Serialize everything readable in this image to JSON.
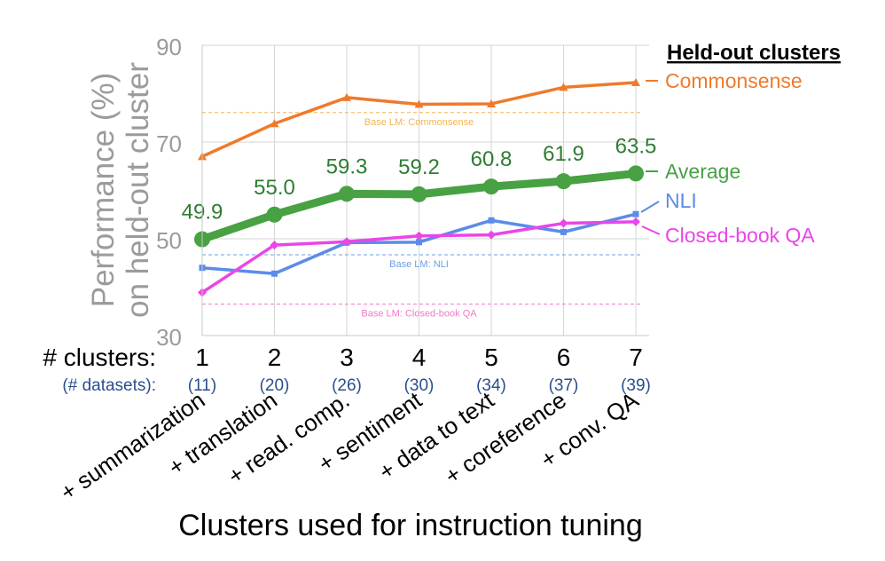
{
  "chart_data": {
    "type": "line",
    "ylabel": "Performance (%)",
    "ylabel2": "on held-out cluster",
    "xlabel": "Clusters used for instruction tuning",
    "x": [
      1,
      2,
      3,
      4,
      5,
      6,
      7
    ],
    "ylim": [
      30,
      90
    ],
    "yticks": [
      30,
      50,
      70,
      90
    ],
    "grid": true,
    "cluster_row_label": "# clusters:",
    "dataset_row_label": "(# datasets):",
    "dataset_counts": [
      "(11)",
      "(20)",
      "(26)",
      "(30)",
      "(34)",
      "(37)",
      "(39)"
    ],
    "cluster_names": [
      "+ summarization",
      "+ translation",
      "+ read. comp.",
      "+ sentiment",
      "+ data to text",
      "+ coreference",
      "+ conv. QA"
    ],
    "legend_title": "Held-out clusters",
    "legend_placement": "right",
    "series": [
      {
        "name": "Commonsense",
        "color": "#ef7a2c",
        "marker": "triangle",
        "values": [
          67.0,
          73.8,
          79.2,
          77.8,
          77.9,
          81.3,
          82.3
        ]
      },
      {
        "name": "Average",
        "color": "#48a143",
        "marker": "circle",
        "values": [
          49.9,
          55.0,
          59.3,
          59.2,
          60.8,
          61.9,
          63.5
        ],
        "labels": [
          "49.9",
          "55.0",
          "59.3",
          "59.2",
          "60.8",
          "61.9",
          "63.5"
        ]
      },
      {
        "name": "NLI",
        "color": "#5b8ce8",
        "marker": "square",
        "values": [
          44.0,
          42.8,
          49.2,
          49.3,
          53.8,
          51.4,
          55.1
        ]
      },
      {
        "name": "Closed-book QA",
        "color": "#ea45e8",
        "marker": "diamond",
        "values": [
          38.9,
          48.7,
          49.4,
          50.6,
          50.8,
          53.2,
          53.5
        ]
      }
    ],
    "baselines": [
      {
        "label": "Base LM: Commonsense",
        "value": 76.1,
        "color": "#f3b452"
      },
      {
        "label": "Base LM: NLI",
        "value": 46.7,
        "color": "#6a9fe0"
      },
      {
        "label": "Base LM: Closed-book QA",
        "value": 36.5,
        "color": "#f07ac8"
      }
    ]
  }
}
